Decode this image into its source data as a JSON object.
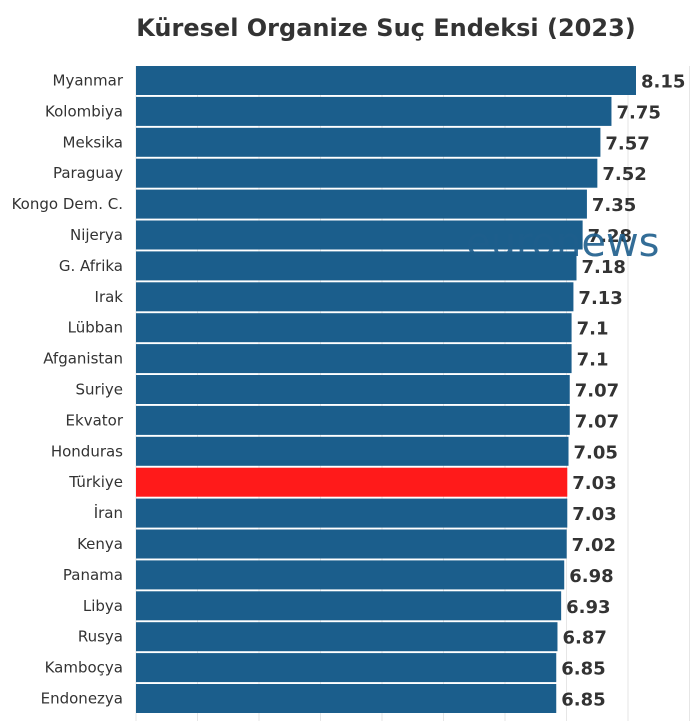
{
  "chart_data": {
    "type": "bar",
    "orientation": "horizontal",
    "title": "Küresel Organize Suç Endeksi (2023)",
    "categories": [
      "Myanmar",
      "Kolombiya",
      "Meksika",
      "Paraguay",
      "Kongo Dem. C.",
      "Nijerya",
      "G. Afrika",
      "Irak",
      "Lübban",
      "Afganistan",
      "Suriye",
      "Ekvator",
      "Honduras",
      "Türkiye",
      "İran",
      "Kenya",
      "Panama",
      "Libya",
      "Rusya",
      "Kamboçya",
      "Endonezya"
    ],
    "values": [
      8.15,
      7.75,
      7.57,
      7.52,
      7.35,
      7.28,
      7.18,
      7.13,
      7.1,
      7.1,
      7.07,
      7.07,
      7.05,
      7.03,
      7.03,
      7.02,
      6.98,
      6.93,
      6.87,
      6.85,
      6.85
    ],
    "value_labels": [
      "8.15",
      "7.75",
      "7.57",
      "7.52",
      "7.35",
      "7.28",
      "7.18",
      "7.13",
      "7.1",
      "7.1",
      "7.07",
      "7.07",
      "7.05",
      "7.03",
      "7.03",
      "7.02",
      "6.98",
      "6.93",
      "6.87",
      "6.85",
      "6.85"
    ],
    "highlight": "Türkiye",
    "xlim": [
      0,
      8.15
    ],
    "grid": true,
    "legend": "none"
  },
  "colors": {
    "bar": "#1b5e8c",
    "highlight": "#ff1a1a",
    "grid": "#e6e6e6",
    "text": "#333333"
  },
  "watermark": {
    "text": "euronews",
    "color": "#1e5e8c"
  }
}
